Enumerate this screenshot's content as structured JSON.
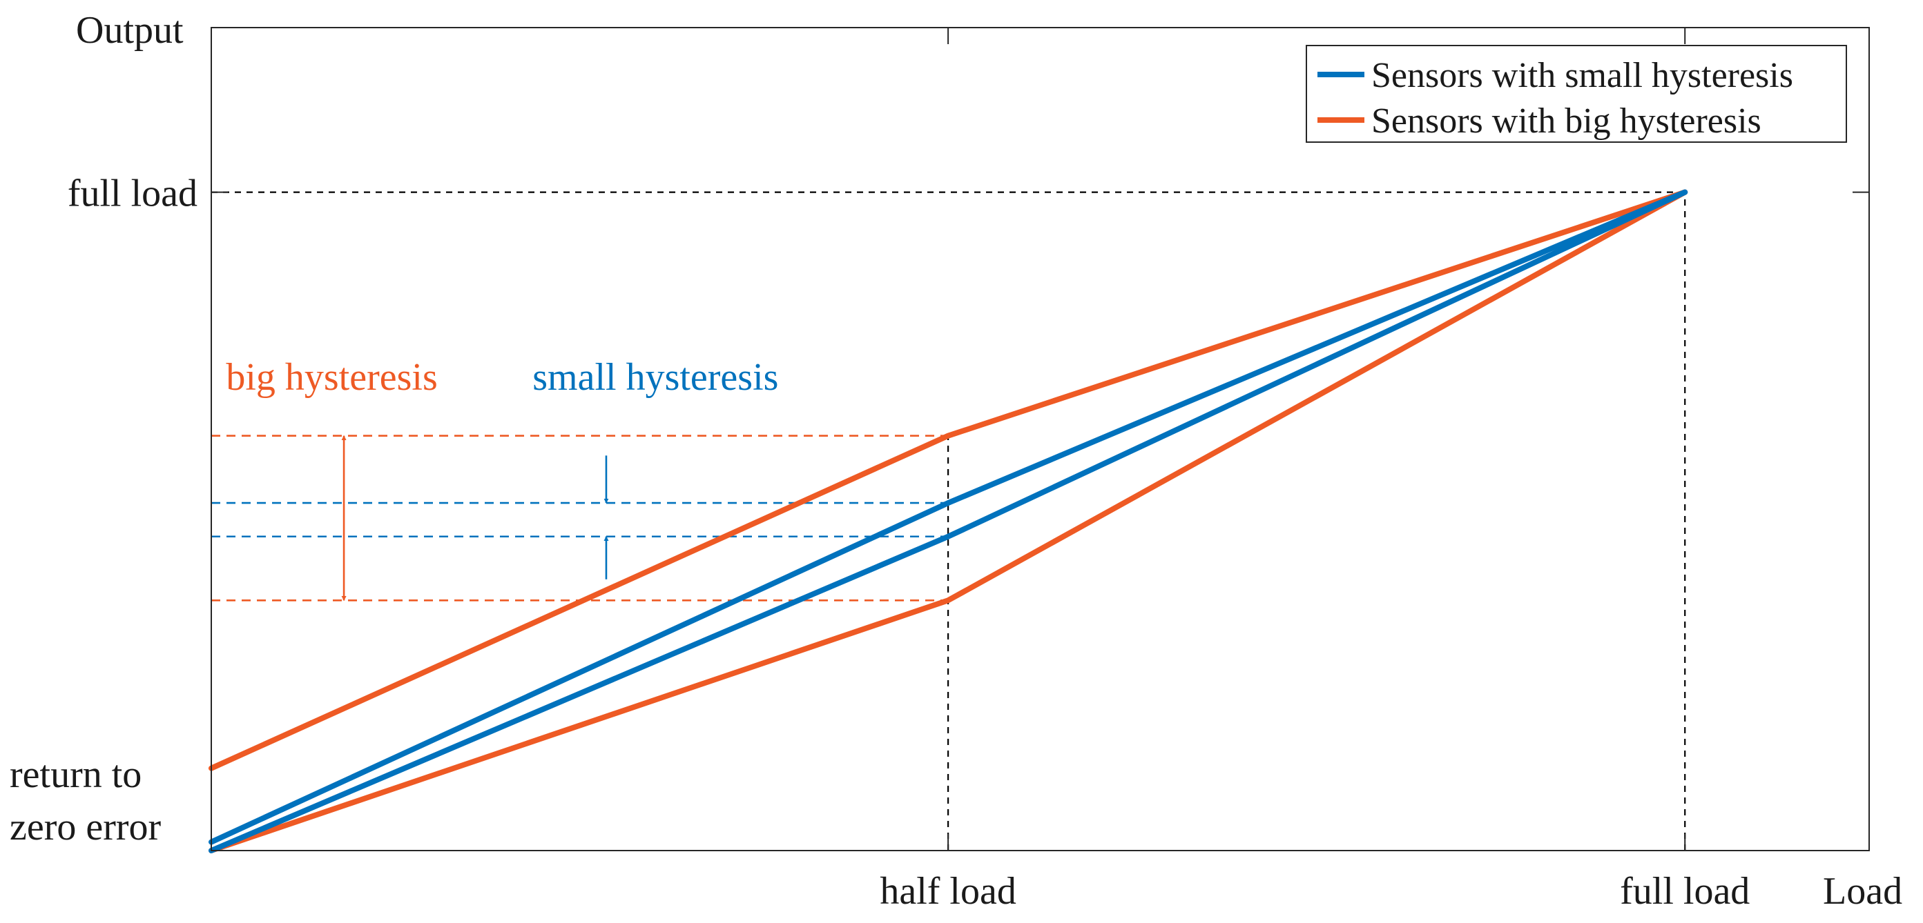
{
  "chart_data": {
    "type": "line",
    "title": "",
    "xlabel": "Load",
    "ylabel": "Output",
    "xlim": [
      0,
      1.125
    ],
    "ylim": [
      0,
      1.25
    ],
    "x_ticks": [
      {
        "value": 0.5,
        "label": "half load"
      },
      {
        "value": 1.0,
        "label": "full load"
      }
    ],
    "y_ticks": [
      {
        "value": 1.0,
        "label": "full load"
      },
      {
        "value": 0.0,
        "label": "return to zero error",
        "lines": [
          "return to",
          "zero error"
        ]
      }
    ],
    "series": [
      {
        "name": "Sensors with big hysteresis",
        "part": "loading",
        "color": "#EE5A24",
        "x": [
          0,
          0.5,
          1.0
        ],
        "y": [
          0,
          0.38,
          1.0
        ]
      },
      {
        "name": "Sensors with big hysteresis",
        "part": "unloading",
        "color": "#EE5A24",
        "x": [
          1.0,
          0.5,
          0
        ],
        "y": [
          1.0,
          0.63,
          0.125
        ]
      },
      {
        "name": "Sensors with small hysteresis",
        "part": "loading",
        "color": "#0072BD",
        "x": [
          0,
          0.5,
          1.0
        ],
        "y": [
          0,
          0.477,
          1.0
        ]
      },
      {
        "name": "Sensors with small hysteresis",
        "part": "unloading",
        "color": "#0072BD",
        "x": [
          1.0,
          0.5,
          0
        ],
        "y": [
          1.0,
          0.528,
          0.013
        ]
      }
    ],
    "legend": {
      "position": "top-right",
      "entries": [
        {
          "label": "Sensors with small hysteresis",
          "color": "#0072BD"
        },
        {
          "label": "Sensors with big hysteresis",
          "color": "#EE5A24"
        }
      ]
    },
    "reference_lines": [
      {
        "orientation": "horizontal",
        "y": 1.0,
        "x_from": 0,
        "x_to": 1.0,
        "color": "#000000"
      },
      {
        "orientation": "vertical",
        "x": 0.5,
        "y_from": 0,
        "y_to": 0.63,
        "color": "#000000"
      },
      {
        "orientation": "vertical",
        "x": 1.0,
        "y_from": 0,
        "y_to": 1.0,
        "color": "#000000"
      },
      {
        "orientation": "horizontal",
        "y": 0.63,
        "x_from": 0,
        "x_to": 0.5,
        "color": "#EE5A24"
      },
      {
        "orientation": "horizontal",
        "y": 0.38,
        "x_from": 0,
        "x_to": 0.5,
        "color": "#EE5A24"
      },
      {
        "orientation": "horizontal",
        "y": 0.528,
        "x_from": 0,
        "x_to": 0.5,
        "color": "#0072BD"
      },
      {
        "orientation": "horizontal",
        "y": 0.477,
        "x_from": 0,
        "x_to": 0.5,
        "color": "#0072BD"
      }
    ],
    "annotations": [
      {
        "text": "big hysteresis",
        "color": "#EE5A24",
        "x": 0.01,
        "y": 0.7
      },
      {
        "text": "small hysteresis",
        "color": "#0072BD",
        "x": 0.218,
        "y": 0.7
      }
    ],
    "arrows": [
      {
        "kind": "double",
        "color": "#EE5A24",
        "x": 0.09,
        "y_from": 0.38,
        "y_to": 0.63
      },
      {
        "kind": "pointing-down",
        "color": "#0072BD",
        "x": 0.268,
        "y_from": 0.6,
        "y_to": 0.528
      },
      {
        "kind": "pointing-up",
        "color": "#0072BD",
        "x": 0.268,
        "y_from": 0.412,
        "y_to": 0.477
      }
    ],
    "grid": false
  }
}
